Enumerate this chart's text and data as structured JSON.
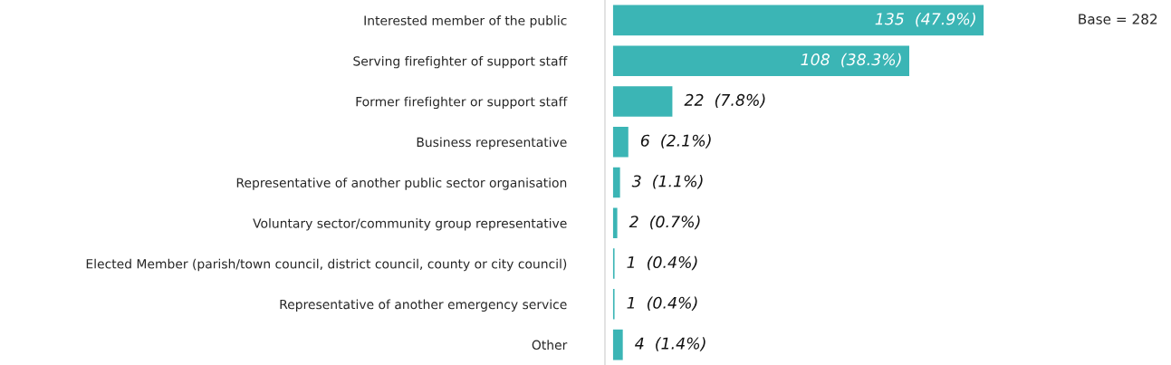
{
  "chart_data": {
    "type": "bar",
    "orientation": "horizontal",
    "categories": [
      "Interested member of the public",
      "Serving firefighter of support staff",
      "Former firefighter or support staff",
      "Business representative",
      "Representative of another public sector organisation",
      "Voluntary sector/community group representative",
      "Elected Member (parish/town council, district council, county or city council)",
      "Representative of another emergency service",
      "Other"
    ],
    "values": [
      135,
      108,
      22,
      6,
      3,
      2,
      1,
      1,
      4
    ],
    "value_labels": [
      "135  (47.9%)",
      "108  (38.3%)",
      "22  (7.8%)",
      "6  (2.1%)",
      "3  (1.1%)",
      "2  (0.7%)",
      "1  (0.4%)",
      "1  (0.4%)",
      "4  (1.4%)"
    ],
    "color": "#3bb5b5",
    "annotations": [
      "Base = 282"
    ],
    "grid": false,
    "legend": false
  }
}
